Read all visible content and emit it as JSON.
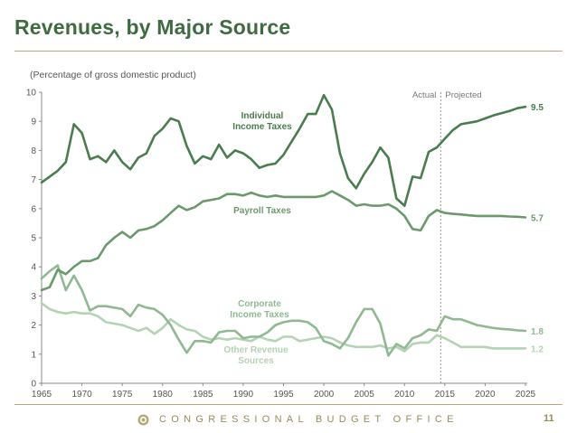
{
  "slide": {
    "title": "Revenues, by Major Source",
    "footer": "CONGRESSIONAL BUDGET OFFICE",
    "page_number": "11"
  },
  "colors": {
    "individual": "#4a7c4e",
    "payroll": "#6a9a6c",
    "corporate": "#8fb991",
    "other": "#b4d2b4",
    "title": "#3e6b3f",
    "gold": "#b7a77a"
  },
  "chart_data": {
    "type": "line",
    "title": "Revenues, by Major Source",
    "subtitle": "(Percentage of gross domestic product)",
    "xlim": [
      1965,
      2025
    ],
    "ylim": [
      0,
      10
    ],
    "x_ticks": [
      1965,
      1970,
      1975,
      1980,
      1985,
      1990,
      1995,
      2000,
      2005,
      2010,
      2015,
      2020,
      2025
    ],
    "y_ticks": [
      0,
      1,
      2,
      3,
      4,
      5,
      6,
      7,
      8,
      9,
      10
    ],
    "divider_year": 2014.5,
    "actual_label": "Actual",
    "projected_label": "Projected",
    "series": [
      {
        "key": "individual",
        "name": "Individual Income Taxes",
        "label_lines": [
          "Individual",
          "Income Taxes"
        ],
        "end_label": "9.5",
        "x": [
          1965,
          1966,
          1967,
          1968,
          1969,
          1970,
          1971,
          1972,
          1973,
          1974,
          1975,
          1976,
          1977,
          1978,
          1979,
          1980,
          1981,
          1982,
          1983,
          1984,
          1985,
          1986,
          1987,
          1988,
          1989,
          1990,
          1991,
          1992,
          1993,
          1994,
          1995,
          1996,
          1997,
          1998,
          1999,
          2000,
          2001,
          2002,
          2003,
          2004,
          2005,
          2006,
          2007,
          2008,
          2009,
          2010,
          2011,
          2012,
          2013,
          2014,
          2015,
          2016,
          2017,
          2018,
          2019,
          2020,
          2021,
          2022,
          2023,
          2024,
          2025
        ],
        "values": [
          6.9,
          7.1,
          7.3,
          7.6,
          8.9,
          8.6,
          7.7,
          7.8,
          7.6,
          8.0,
          7.6,
          7.35,
          7.75,
          7.9,
          8.5,
          8.75,
          9.1,
          9.0,
          8.15,
          7.55,
          7.8,
          7.7,
          8.2,
          7.75,
          8.0,
          7.9,
          7.7,
          7.4,
          7.5,
          7.55,
          7.85,
          8.3,
          8.75,
          9.25,
          9.25,
          9.9,
          9.4,
          7.9,
          7.05,
          6.7,
          7.2,
          7.6,
          8.1,
          7.75,
          6.35,
          6.1,
          7.1,
          7.05,
          7.95,
          8.1,
          8.4,
          8.7,
          8.9,
          8.95,
          9.0,
          9.1,
          9.2,
          9.28,
          9.35,
          9.45,
          9.5
        ]
      },
      {
        "key": "payroll",
        "name": "Payroll Taxes",
        "label_lines": [
          "Payroll Taxes"
        ],
        "end_label": "5.7",
        "x": [
          1965,
          1966,
          1967,
          1968,
          1969,
          1970,
          1971,
          1972,
          1973,
          1974,
          1975,
          1976,
          1977,
          1978,
          1979,
          1980,
          1981,
          1982,
          1983,
          1984,
          1985,
          1986,
          1987,
          1988,
          1989,
          1990,
          1991,
          1992,
          1993,
          1994,
          1995,
          1996,
          1997,
          1998,
          1999,
          2000,
          2001,
          2002,
          2003,
          2004,
          2005,
          2006,
          2007,
          2008,
          2009,
          2010,
          2011,
          2012,
          2013,
          2014,
          2015,
          2016,
          2017,
          2018,
          2019,
          2020,
          2021,
          2022,
          2023,
          2024,
          2025
        ],
        "values": [
          3.2,
          3.3,
          3.9,
          3.75,
          4.0,
          4.2,
          4.2,
          4.3,
          4.75,
          5.0,
          5.2,
          5.0,
          5.25,
          5.3,
          5.4,
          5.6,
          5.85,
          6.1,
          5.95,
          6.05,
          6.25,
          6.3,
          6.35,
          6.5,
          6.5,
          6.45,
          6.55,
          6.45,
          6.4,
          6.45,
          6.4,
          6.4,
          6.4,
          6.4,
          6.4,
          6.45,
          6.6,
          6.45,
          6.3,
          6.1,
          6.15,
          6.1,
          6.1,
          6.15,
          6.0,
          5.75,
          5.3,
          5.25,
          5.75,
          5.95,
          5.85,
          5.82,
          5.8,
          5.77,
          5.75,
          5.75,
          5.75,
          5.75,
          5.73,
          5.72,
          5.7
        ]
      },
      {
        "key": "corporate",
        "name": "Corporate Income Taxes",
        "label_lines": [
          "Corporate",
          "Income Taxes"
        ],
        "end_label": "1.8",
        "x": [
          1965,
          1966,
          1967,
          1968,
          1969,
          1970,
          1971,
          1972,
          1973,
          1974,
          1975,
          1976,
          1977,
          1978,
          1979,
          1980,
          1981,
          1982,
          1983,
          1984,
          1985,
          1986,
          1987,
          1988,
          1989,
          1990,
          1991,
          1992,
          1993,
          1994,
          1995,
          1996,
          1997,
          1998,
          1999,
          2000,
          2001,
          2002,
          2003,
          2004,
          2005,
          2006,
          2007,
          2008,
          2009,
          2010,
          2011,
          2012,
          2013,
          2014,
          2015,
          2016,
          2017,
          2018,
          2019,
          2020,
          2021,
          2022,
          2023,
          2024,
          2025
        ],
        "values": [
          3.6,
          3.85,
          4.05,
          3.2,
          3.7,
          3.2,
          2.5,
          2.65,
          2.65,
          2.6,
          2.55,
          2.3,
          2.7,
          2.6,
          2.55,
          2.35,
          2.0,
          1.5,
          1.05,
          1.45,
          1.45,
          1.4,
          1.75,
          1.8,
          1.8,
          1.55,
          1.6,
          1.6,
          1.75,
          2.0,
          2.1,
          2.15,
          2.15,
          2.1,
          1.9,
          1.45,
          1.35,
          1.2,
          1.55,
          2.1,
          2.55,
          2.55,
          2.05,
          0.95,
          1.35,
          1.2,
          1.55,
          1.65,
          1.85,
          1.8,
          2.3,
          2.2,
          2.2,
          2.1,
          2.0,
          1.95,
          1.9,
          1.87,
          1.85,
          1.82,
          1.8
        ]
      },
      {
        "key": "other",
        "name": "Other Revenue Sources",
        "label_lines": [
          "Other Revenue",
          "Sources"
        ],
        "end_label": "1.2",
        "x": [
          1965,
          1966,
          1967,
          1968,
          1969,
          1970,
          1971,
          1972,
          1973,
          1974,
          1975,
          1976,
          1977,
          1978,
          1979,
          1980,
          1981,
          1982,
          1983,
          1984,
          1985,
          1986,
          1987,
          1988,
          1989,
          1990,
          1991,
          1992,
          1993,
          1994,
          1995,
          1996,
          1997,
          1998,
          1999,
          2000,
          2001,
          2002,
          2003,
          2004,
          2005,
          2006,
          2007,
          2008,
          2009,
          2010,
          2011,
          2012,
          2013,
          2014,
          2015,
          2016,
          2017,
          2018,
          2019,
          2020,
          2021,
          2022,
          2023,
          2024,
          2025
        ],
        "values": [
          2.75,
          2.55,
          2.45,
          2.4,
          2.45,
          2.4,
          2.4,
          2.3,
          2.1,
          2.05,
          2.0,
          1.9,
          1.8,
          1.9,
          1.7,
          1.9,
          2.2,
          2.0,
          1.85,
          1.8,
          1.6,
          1.5,
          1.55,
          1.5,
          1.55,
          1.5,
          1.45,
          1.6,
          1.5,
          1.45,
          1.6,
          1.6,
          1.45,
          1.5,
          1.55,
          1.6,
          1.55,
          1.4,
          1.3,
          1.25,
          1.25,
          1.25,
          1.3,
          1.2,
          1.25,
          1.1,
          1.35,
          1.4,
          1.4,
          1.65,
          1.55,
          1.4,
          1.25,
          1.25,
          1.25,
          1.25,
          1.2,
          1.2,
          1.2,
          1.2,
          1.2
        ]
      }
    ]
  }
}
